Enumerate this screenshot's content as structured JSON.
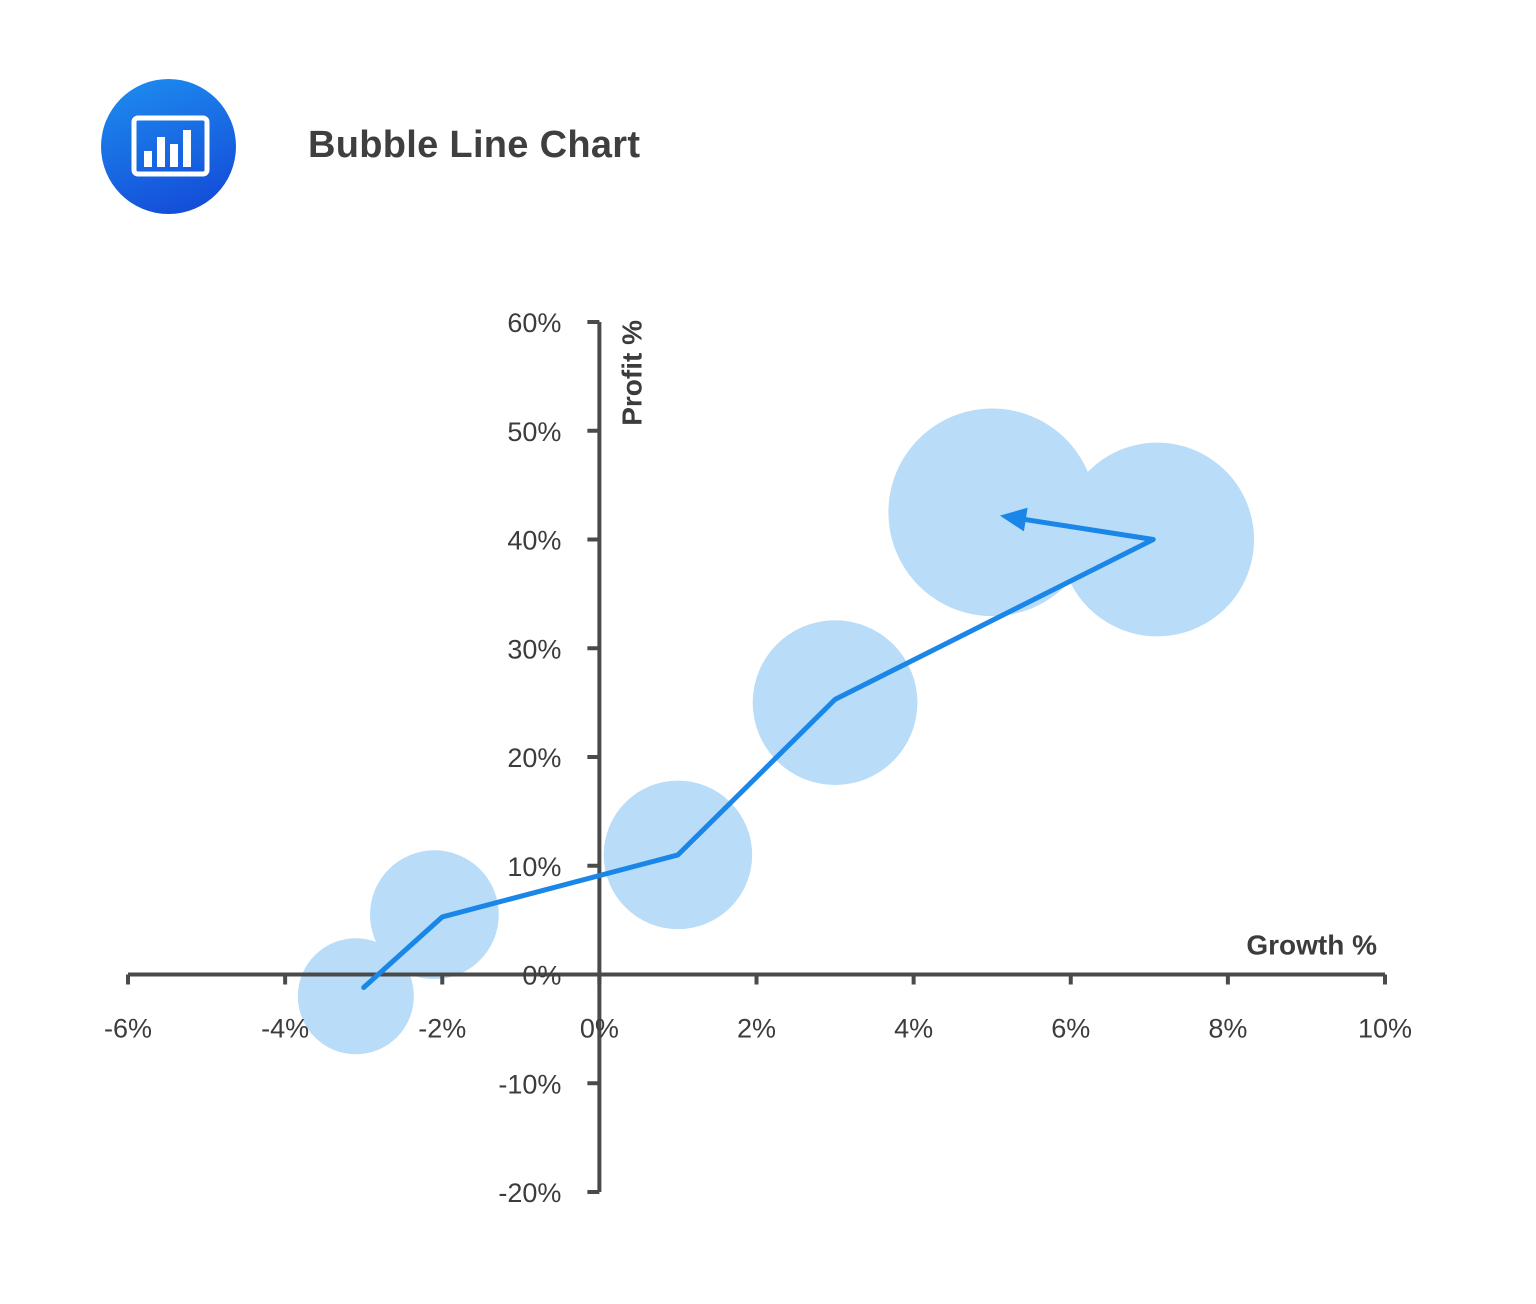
{
  "header": {
    "title": "Bubble Line Chart",
    "icon": "bar-chart-icon",
    "icon_color": "#1a6be6"
  },
  "chart_data": {
    "type": "scatter",
    "variant": "bubble-line",
    "title": "Bubble Line Chart",
    "xlabel": "Growth %",
    "ylabel": "Profit %",
    "xlim": [
      -6,
      10
    ],
    "ylim": [
      -20,
      60
    ],
    "x_ticks": [
      "-6%",
      "-4%",
      "-2%",
      "0%",
      "2%",
      "4%",
      "6%",
      "8%",
      "10%"
    ],
    "y_ticks": [
      "60%",
      "50%",
      "40%",
      "30%",
      "20%",
      "10%",
      "0%",
      "-10%",
      "-20%"
    ],
    "x_tick_values": [
      -6,
      -4,
      -2,
      0,
      2,
      4,
      6,
      8,
      10
    ],
    "y_tick_values": [
      60,
      50,
      40,
      30,
      20,
      10,
      0,
      -10,
      -20
    ],
    "grid": false,
    "bubble_color": "#b9dcf8",
    "line_color": "#1a86e8",
    "axis_color": "#4a4a4a",
    "bubbles": [
      {
        "x": -3.1,
        "y": -2,
        "size": 1.0
      },
      {
        "x": -2.1,
        "y": 5.5,
        "size": 1.11
      },
      {
        "x": 1.0,
        "y": 11,
        "size": 1.28
      },
      {
        "x": 3.0,
        "y": 25,
        "size": 1.42
      },
      {
        "x": 5.0,
        "y": 42.5,
        "size": 1.79
      },
      {
        "x": 7.1,
        "y": 40,
        "size": 1.67
      }
    ],
    "line_path": [
      {
        "x": -3.0,
        "y": -1.2
      },
      {
        "x": -2.0,
        "y": 5.3
      },
      {
        "x": 1.0,
        "y": 11
      },
      {
        "x": 3.0,
        "y": 25.3
      },
      {
        "x": 7.05,
        "y": 40
      },
      {
        "x": 5.1,
        "y": 42.2
      }
    ],
    "arrow_at_end": true
  }
}
